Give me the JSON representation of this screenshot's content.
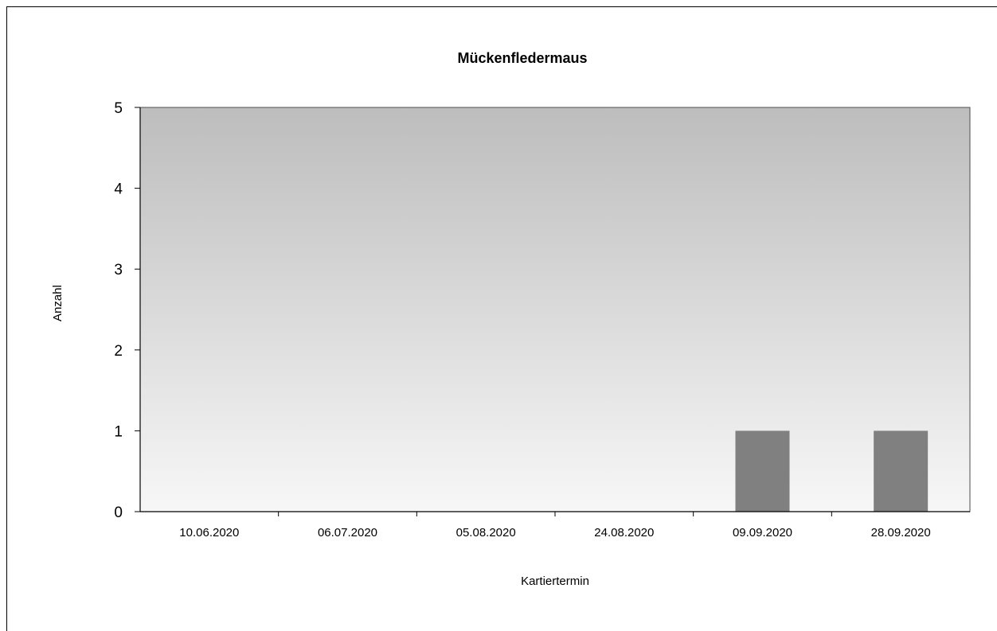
{
  "chart_data": {
    "type": "bar",
    "title": "Mückenfledermaus",
    "xlabel": "Kartiertermin",
    "ylabel": "Anzahl",
    "categories": [
      "10.06.2020",
      "06.07.2020",
      "05.08.2020",
      "24.08.2020",
      "09.09.2020",
      "28.09.2020"
    ],
    "values": [
      0,
      0,
      0,
      0,
      1,
      1
    ],
    "ylim": [
      0,
      5
    ],
    "yticks": [
      "0",
      "1",
      "2",
      "3",
      "4",
      "5"
    ],
    "grid": false,
    "legend": "none",
    "colors": {
      "bar": "#808080",
      "plot_gradient_top": "#bdbdbd",
      "plot_gradient_bottom": "#f7f7f7",
      "axis": "#4d4d4d"
    }
  }
}
